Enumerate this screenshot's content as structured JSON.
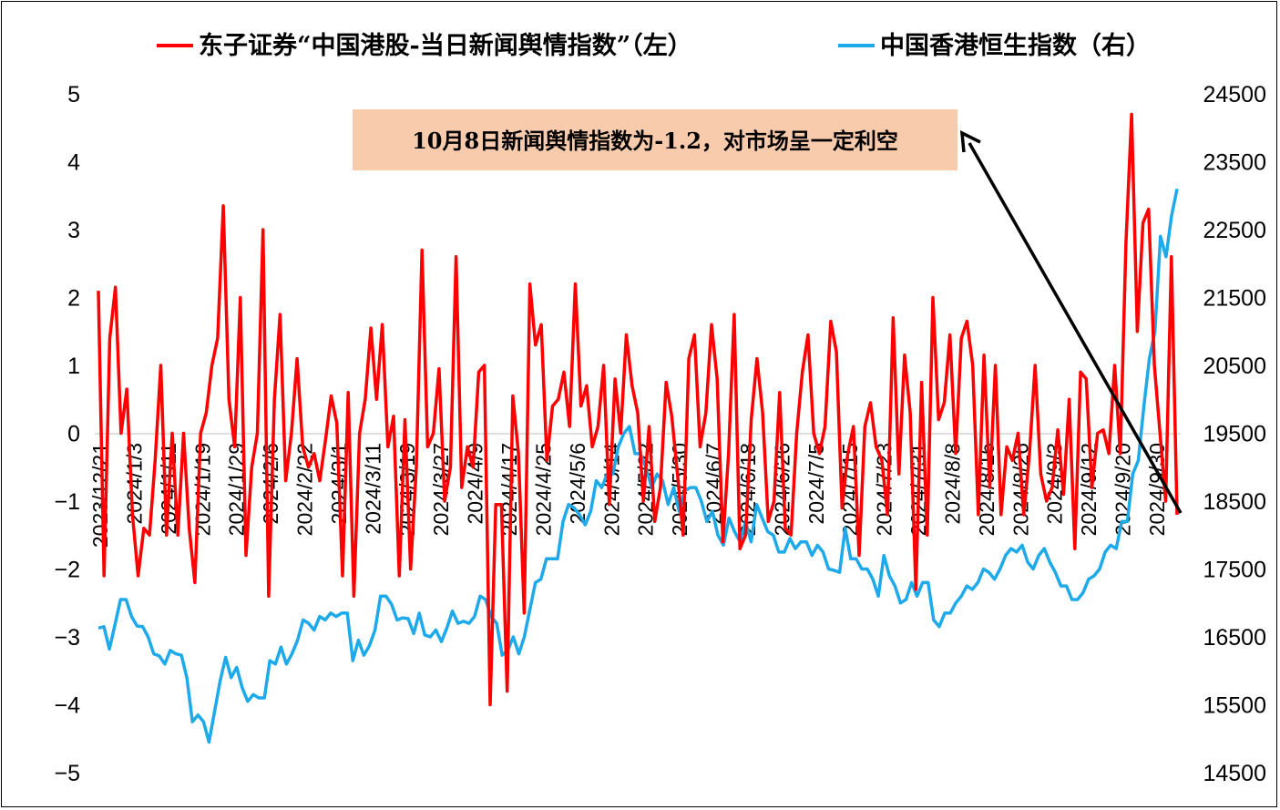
{
  "chart_data": {
    "type": "line",
    "title": "",
    "colors": {
      "series_left": "#ff0000",
      "series_right": "#1eaaea",
      "annotation_bg": "#f8cbad",
      "grid": "#d9d9d9"
    },
    "legend": {
      "placement": "top",
      "items": [
        "东子证券“中国港股-当日新闻舆情指数”（左）",
        "中国香港恒生指数（右）"
      ]
    },
    "left_axis": {
      "ylim": [
        -5,
        5
      ],
      "ticks": [
        "5",
        "4",
        "3",
        "2",
        "1",
        "0",
        "−1",
        "−2",
        "−3",
        "−4",
        "−5"
      ]
    },
    "right_axis": {
      "ylim": [
        14500,
        24500
      ],
      "ticks": [
        "24500",
        "23500",
        "22500",
        "21500",
        "20500",
        "19500",
        "18500",
        "17500",
        "16500",
        "15500",
        "14500"
      ]
    },
    "grid": false,
    "x_tick_labels": [
      "2023/12/21",
      "2024/1/3",
      "2024/1/11",
      "2024/1/19",
      "2024/1/29",
      "2024/2/6",
      "2024/2/22",
      "2024/3/1",
      "2024/3/11",
      "2024/3/19",
      "2024/3/27",
      "2024/4/9",
      "2024/4/17",
      "2024/4/25",
      "2024/5/6",
      "2024/5/14",
      "2024/5/22",
      "2024/5/30",
      "2024/6/7",
      "2024/6/18",
      "2024/6/26",
      "2024/7/5",
      "2024/7/15",
      "2024/7/23",
      "2024/7/31",
      "2024/8/8",
      "2024/8/16",
      "2024/8/26",
      "2024/9/3",
      "2024/9/12",
      "2024/9/20",
      "2024/9/30"
    ],
    "annotation": {
      "text": "10月8日新闻舆情指数为-1.2，对市场呈一定利空"
    },
    "series": [
      {
        "name": "东子证券“中国港股-当日新闻舆情指数”（左）",
        "axis": "left",
        "values": [
          2.1,
          -2.1,
          1.4,
          2.15,
          0.0,
          0.65,
          -1.2,
          -2.1,
          -1.4,
          -1.5,
          -0.4,
          1.0,
          -1.5,
          0.0,
          -1.5,
          0.0,
          -1.4,
          -2.2,
          0.0,
          0.3,
          1.0,
          1.4,
          3.35,
          0.5,
          -0.2,
          2.0,
          -1.8,
          -0.5,
          0.0,
          3.0,
          -2.4,
          0.5,
          1.75,
          -0.7,
          0.0,
          1.1,
          -0.2,
          -0.5,
          -0.3,
          -0.7,
          -0.1,
          0.55,
          0.15,
          -2.1,
          0.6,
          -2.4,
          0.0,
          0.5,
          1.55,
          0.5,
          1.6,
          -0.2,
          0.25,
          -2.1,
          0.2,
          -2.0,
          -0.5,
          2.7,
          -0.2,
          0.0,
          0.95,
          -1.0,
          -0.5,
          2.6,
          -0.8,
          -0.2,
          -0.5,
          0.9,
          1.0,
          -4.0,
          -1.05,
          -1.05,
          -3.8,
          0.55,
          -0.3,
          -2.65,
          2.2,
          1.3,
          1.6,
          -0.4,
          0.4,
          0.5,
          0.9,
          0.1,
          2.2,
          0.4,
          0.7,
          -0.2,
          0.1,
          1.0,
          -1.05,
          0.8,
          0.0,
          1.45,
          0.7,
          0.3,
          -1.0,
          0.1,
          -1.3,
          -0.8,
          0.75,
          0.25,
          -0.6,
          -1.5,
          1.1,
          1.45,
          -0.2,
          0.3,
          1.6,
          0.8,
          -1.6,
          -0.3,
          1.75,
          -1.7,
          -1.5,
          0.2,
          1.1,
          0.3,
          -1.3,
          -1.0,
          0.6,
          -1.4,
          -1.5,
          0.0,
          0.9,
          1.45,
          0.0,
          -0.3,
          0.1,
          1.65,
          1.2,
          -1.1,
          -0.3,
          0.1,
          -1.8,
          0.1,
          0.45,
          -0.2,
          -0.4,
          -1.2,
          1.7,
          -0.6,
          1.15,
          0.3,
          -2.3,
          0.75,
          -1.5,
          2.0,
          0.2,
          0.45,
          1.45,
          -0.3,
          1.4,
          1.65,
          1.0,
          -1.2,
          1.15,
          -0.8,
          1.0,
          -1.2,
          -0.2,
          -0.4,
          0.0,
          -1.2,
          -0.3,
          1.0,
          -0.6,
          -1.0,
          -0.8,
          0.05,
          -0.9,
          0.5,
          -1.7,
          0.9,
          0.8,
          -0.8,
          0.0,
          0.05,
          -0.3,
          1.0,
          -0.3,
          2.8,
          4.7,
          1.5,
          3.1,
          3.3,
          1.0,
          0.0,
          -1.0,
          2.6,
          -1.2
        ]
      },
      {
        "name": "中国香港恒生指数（右）",
        "axis": "right",
        "values": [
          16630,
          16650,
          16320,
          16680,
          17050,
          17050,
          16800,
          16660,
          16650,
          16500,
          16250,
          16220,
          16100,
          16300,
          16250,
          16230,
          15900,
          15250,
          15350,
          15250,
          14950,
          15400,
          15850,
          16200,
          15900,
          16050,
          15750,
          15550,
          15650,
          15600,
          15600,
          16150,
          16100,
          16350,
          16100,
          16250,
          16450,
          16750,
          16700,
          16600,
          16800,
          16750,
          16850,
          16800,
          16850,
          16850,
          16150,
          16450,
          16230,
          16370,
          16600,
          17100,
          17100,
          16980,
          16750,
          16780,
          16770,
          16550,
          16850,
          16530,
          16500,
          16600,
          16430,
          16630,
          16880,
          16700,
          16730,
          16700,
          16800,
          17100,
          17050,
          16800,
          16700,
          16230,
          16300,
          16500,
          16250,
          16500,
          16900,
          17300,
          17350,
          17650,
          17650,
          17650,
          18200,
          18450,
          18400,
          18300,
          18150,
          18350,
          18800,
          18700,
          18900,
          18900,
          19300,
          19500,
          19600,
          19200,
          19200,
          19000,
          18700,
          18900,
          18800,
          18450,
          18700,
          18350,
          18650,
          18700,
          18700,
          18500,
          18200,
          18350,
          18000,
          17850,
          18250,
          18050,
          17900,
          18200,
          17900,
          18450,
          18250,
          18050,
          18000,
          17750,
          17750,
          17950,
          17800,
          17900,
          17900,
          17700,
          17850,
          17750,
          17500,
          17480,
          17450,
          18100,
          17650,
          17650,
          17500,
          17500,
          17350,
          17100,
          17700,
          17400,
          17250,
          17000,
          17050,
          17300,
          17100,
          17300,
          17300,
          16750,
          16650,
          16850,
          16850,
          17000,
          17100,
          17250,
          17200,
          17300,
          17500,
          17450,
          17350,
          17500,
          17700,
          17800,
          17750,
          17850,
          17600,
          17500,
          17700,
          17800,
          17600,
          17450,
          17250,
          17250,
          17050,
          17050,
          17150,
          17350,
          17400,
          17500,
          17750,
          17850,
          17800,
          18200,
          18200,
          18900,
          19100,
          19900,
          20600,
          21000,
          22400,
          22100,
          22700,
          23100
        ]
      }
    ]
  }
}
